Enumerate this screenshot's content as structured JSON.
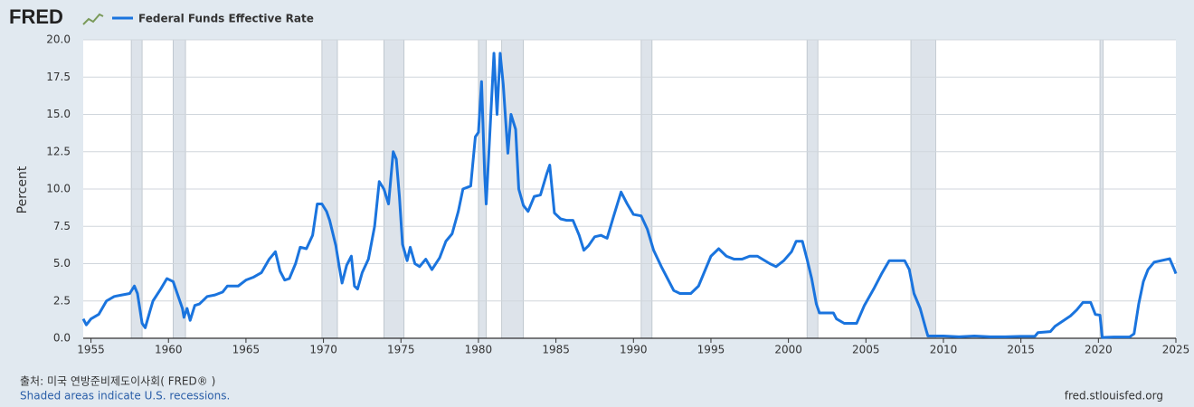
{
  "chart_data": {
    "type": "line",
    "logo": "FRED",
    "ylabel": "Percent",
    "source": "출처: 미국 연방준비제도이사회( FRED® )",
    "note": "Shaded areas indicate U.S. recessions.",
    "url": "fred.stlouisfed.org",
    "grid": true,
    "xlim": [
      1954.5,
      2025
    ],
    "ylim": [
      0,
      20
    ],
    "xticks": [
      1955,
      1960,
      1965,
      1970,
      1975,
      1980,
      1985,
      1990,
      1995,
      2000,
      2005,
      2010,
      2015,
      2020,
      2025
    ],
    "yticks": [
      {
        "value": 0,
        "label": "0.0"
      },
      2.5,
      {
        "value": 5,
        "label": "5.0"
      },
      7.5,
      {
        "value": 10,
        "label": "10.0"
      },
      12.5,
      {
        "value": 15,
        "label": "15.0"
      },
      17.5,
      {
        "value": 20,
        "label": "20.0"
      }
    ],
    "recession_color": "#dde3ea",
    "recessions": [
      [
        1957.6,
        1958.3
      ],
      [
        1960.3,
        1961.1
      ],
      [
        1969.9,
        1970.9
      ],
      [
        1973.9,
        1975.2
      ],
      [
        1980.0,
        1980.5
      ],
      [
        1981.5,
        1982.9
      ],
      [
        1990.5,
        1991.2
      ],
      [
        2001.2,
        2001.9
      ],
      [
        2007.9,
        2009.5
      ],
      [
        2020.1,
        2020.3
      ]
    ],
    "x": [
      1954.5,
      1954.7,
      1955.0,
      1955.5,
      1956.0,
      1956.5,
      1957.0,
      1957.5,
      1957.8,
      1958.0,
      1958.3,
      1958.5,
      1958.8,
      1959.0,
      1959.5,
      1959.9,
      1960.3,
      1960.6,
      1960.9,
      1961.0,
      1961.2,
      1961.4,
      1961.7,
      1962.0,
      1962.5,
      1963.0,
      1963.5,
      1963.8,
      1964.5,
      1965.0,
      1965.5,
      1966.0,
      1966.5,
      1966.9,
      1967.2,
      1967.5,
      1967.8,
      1968.2,
      1968.5,
      1968.9,
      1969.3,
      1969.6,
      1969.9,
      1970.2,
      1970.4,
      1970.8,
      1971.0,
      1971.2,
      1971.5,
      1971.8,
      1972.0,
      1972.2,
      1972.5,
      1972.9,
      1973.3,
      1973.6,
      1973.9,
      1974.2,
      1974.5,
      1974.7,
      1974.9,
      1975.1,
      1975.4,
      1975.6,
      1975.9,
      1976.2,
      1976.6,
      1977.0,
      1977.5,
      1977.9,
      1978.3,
      1978.7,
      1979.0,
      1979.5,
      1979.8,
      1980.0,
      1980.2,
      1980.4,
      1980.5,
      1980.8,
      1981.0,
      1981.2,
      1981.4,
      1981.6,
      1981.9,
      1982.1,
      1982.4,
      1982.6,
      1982.9,
      1983.2,
      1983.6,
      1984.0,
      1984.4,
      1984.6,
      1984.9,
      1985.3,
      1985.7,
      1986.1,
      1986.5,
      1986.8,
      1987.1,
      1987.5,
      1987.9,
      1988.3,
      1988.7,
      1989.2,
      1989.6,
      1990.0,
      1990.5,
      1990.9,
      1991.3,
      1991.8,
      1992.2,
      1992.6,
      1993.0,
      1993.7,
      1994.2,
      1994.6,
      1995.0,
      1995.5,
      1996.0,
      1996.5,
      1997.0,
      1997.5,
      1998.0,
      1998.8,
      1999.2,
      1999.7,
      2000.2,
      2000.5,
      2000.9,
      2001.2,
      2001.5,
      2001.8,
      2002.0,
      2002.9,
      2003.1,
      2003.6,
      2004.4,
      2004.9,
      2005.5,
      2006.0,
      2006.5,
      2007.5,
      2007.8,
      2008.1,
      2008.5,
      2008.9,
      2009.0,
      2010.0,
      2011.0,
      2012.0,
      2013.0,
      2014.0,
      2015.0,
      2015.9,
      2016.1,
      2016.9,
      2017.2,
      2017.7,
      2018.2,
      2018.6,
      2019.0,
      2019.5,
      2019.8,
      2020.1,
      2020.25,
      2021.0,
      2022.0,
      2022.3,
      2022.6,
      2022.9,
      2023.2,
      2023.6,
      2024.6,
      2024.9,
      2025.0
    ],
    "series": [
      {
        "name": "Federal Funds Effective Rate",
        "color": "#1a74de",
        "values": [
          1.3,
          0.9,
          1.3,
          1.6,
          2.5,
          2.8,
          2.9,
          3.0,
          3.5,
          3.0,
          1.0,
          0.7,
          1.8,
          2.5,
          3.3,
          4.0,
          3.8,
          2.9,
          2.0,
          1.4,
          2.0,
          1.2,
          2.2,
          2.3,
          2.8,
          2.9,
          3.1,
          3.5,
          3.5,
          3.9,
          4.1,
          4.4,
          5.3,
          5.8,
          4.5,
          3.9,
          4.0,
          5.0,
          6.1,
          6.0,
          6.9,
          9.0,
          9.0,
          8.5,
          7.9,
          6.2,
          4.9,
          3.7,
          4.9,
          5.5,
          3.5,
          3.3,
          4.4,
          5.3,
          7.5,
          10.5,
          10.0,
          9.0,
          12.5,
          12.0,
          9.5,
          6.3,
          5.2,
          6.1,
          5.0,
          4.8,
          5.3,
          4.6,
          5.4,
          6.5,
          7.0,
          8.5,
          10.0,
          10.2,
          13.5,
          13.8,
          17.2,
          11.0,
          9.0,
          15.0,
          19.1,
          15.0,
          19.1,
          17.0,
          12.4,
          15.0,
          14.0,
          10.0,
          8.9,
          8.5,
          9.5,
          9.6,
          11.0,
          11.6,
          8.4,
          8.0,
          7.9,
          7.9,
          6.9,
          5.9,
          6.2,
          6.8,
          6.9,
          6.7,
          8.1,
          9.8,
          9.0,
          8.3,
          8.2,
          7.3,
          5.9,
          4.8,
          4.0,
          3.2,
          3.0,
          3.0,
          3.5,
          4.5,
          5.5,
          6.0,
          5.5,
          5.3,
          5.3,
          5.5,
          5.5,
          5.0,
          4.8,
          5.2,
          5.8,
          6.5,
          6.5,
          5.3,
          4.0,
          2.3,
          1.7,
          1.7,
          1.3,
          1.0,
          1.0,
          2.2,
          3.3,
          4.3,
          5.2,
          5.2,
          4.6,
          3.0,
          2.0,
          0.5,
          0.15,
          0.15,
          0.1,
          0.15,
          0.1,
          0.1,
          0.13,
          0.13,
          0.38,
          0.45,
          0.8,
          1.15,
          1.5,
          1.9,
          2.4,
          2.4,
          1.6,
          1.55,
          0.05,
          0.08,
          0.08,
          0.3,
          2.3,
          3.8,
          4.6,
          5.1,
          5.33,
          4.6,
          4.33
        ]
      }
    ]
  }
}
